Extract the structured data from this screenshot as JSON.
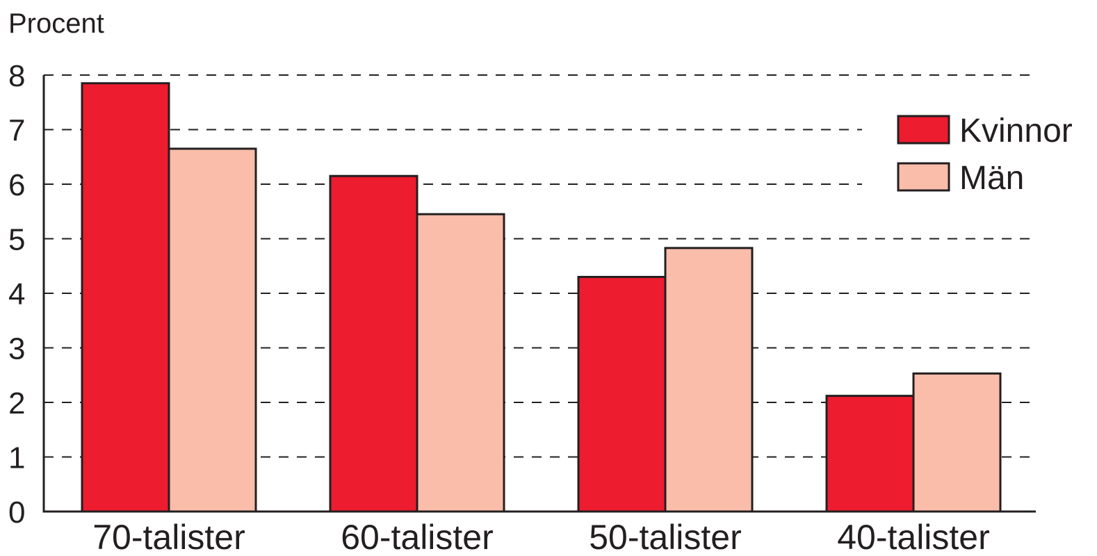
{
  "chart_data": {
    "type": "bar",
    "title": "",
    "ylabel": "Procent",
    "xlabel": "",
    "ylim": [
      0,
      8
    ],
    "yticks": [
      0,
      1,
      2,
      3,
      4,
      5,
      6,
      7,
      8
    ],
    "grid": true,
    "legend_position": "top-right",
    "categories": [
      "70-talister",
      "60-talister",
      "50-talister",
      "40-talister"
    ],
    "series": [
      {
        "name": "Kvinnor",
        "color": "#ed1c2e",
        "values": [
          7.85,
          6.15,
          4.3,
          2.12
        ]
      },
      {
        "name": "Män",
        "color": "#f9bdaa",
        "values": [
          6.65,
          5.45,
          4.83,
          2.53
        ]
      }
    ]
  }
}
